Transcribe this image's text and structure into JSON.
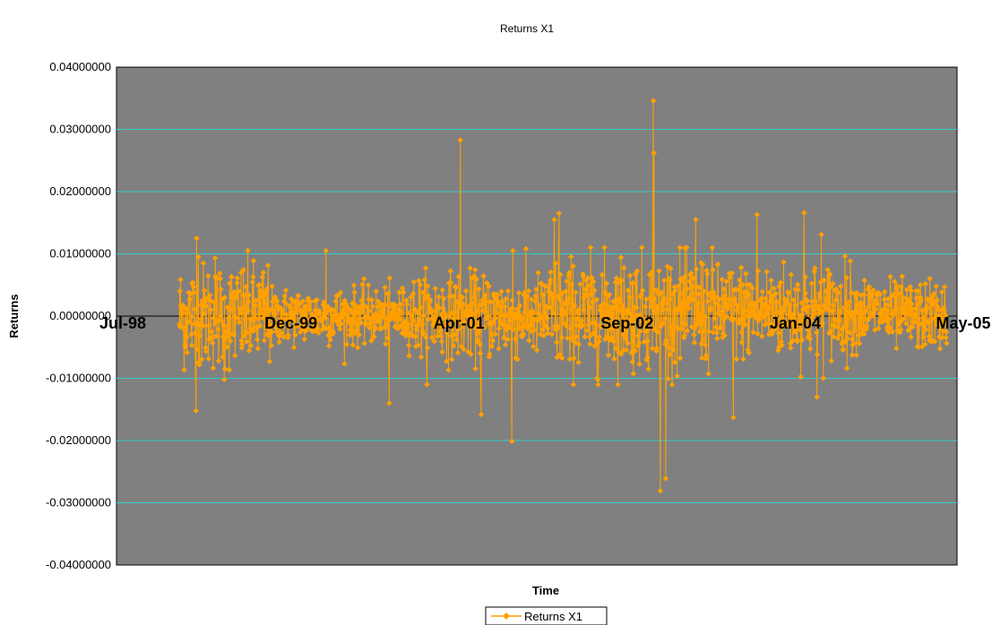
{
  "chart_data": {
    "type": "line",
    "title": "Returns X1",
    "xlabel": "Time",
    "ylabel": "Returns",
    "x_tick_labels": [
      "Jul-98",
      "Dec-99",
      "Apr-01",
      "Sep-02",
      "Jan-04",
      "May-05"
    ],
    "y_tick_labels": [
      "0.04000000",
      "0.03000000",
      "0.02000000",
      "0.01000000",
      "0.00000000",
      "-0.01000000",
      "-0.02000000",
      "-0.03000000",
      "-0.04000000"
    ],
    "x_range": [
      "1998-07-01",
      "2005-05-01"
    ],
    "data_start": "1999-01-04",
    "data_end": "2005-03-31",
    "ylim": [
      -0.04,
      0.04
    ],
    "grid": true,
    "legend_position": "bottom",
    "series": [
      {
        "name": "Returns X1",
        "color": "#FFA000",
        "marker": "diamond",
        "spikes": [
          {
            "date": "1999-02-22",
            "value": -0.0152
          },
          {
            "date": "1999-02-24",
            "value": 0.0125
          },
          {
            "date": "1999-03-01",
            "value": 0.0095
          },
          {
            "date": "1999-05-17",
            "value": -0.0102
          },
          {
            "date": "1999-04-20",
            "value": 0.0093
          },
          {
            "date": "2000-03-14",
            "value": 0.0105
          },
          {
            "date": "2000-09-18",
            "value": -0.014
          },
          {
            "date": "2001-04-17",
            "value": 0.0283
          },
          {
            "date": "2001-06-18",
            "value": -0.0158
          },
          {
            "date": "2001-09-17",
            "value": -0.0201
          },
          {
            "date": "2001-09-20",
            "value": 0.0105
          },
          {
            "date": "2002-01-21",
            "value": 0.0155
          },
          {
            "date": "2002-02-04",
            "value": 0.0165
          },
          {
            "date": "2002-11-11",
            "value": 0.0346
          },
          {
            "date": "2002-11-13",
            "value": 0.0262
          },
          {
            "date": "2002-12-02",
            "value": -0.0281
          },
          {
            "date": "2002-12-18",
            "value": -0.0261
          },
          {
            "date": "2003-03-17",
            "value": 0.0155
          },
          {
            "date": "2003-07-07",
            "value": -0.0163
          },
          {
            "date": "2003-09-15",
            "value": 0.0163
          },
          {
            "date": "2004-02-02",
            "value": 0.0166
          },
          {
            "date": "2004-03-11",
            "value": -0.013
          },
          {
            "date": "2004-03-24",
            "value": 0.0131
          }
        ]
      }
    ]
  }
}
